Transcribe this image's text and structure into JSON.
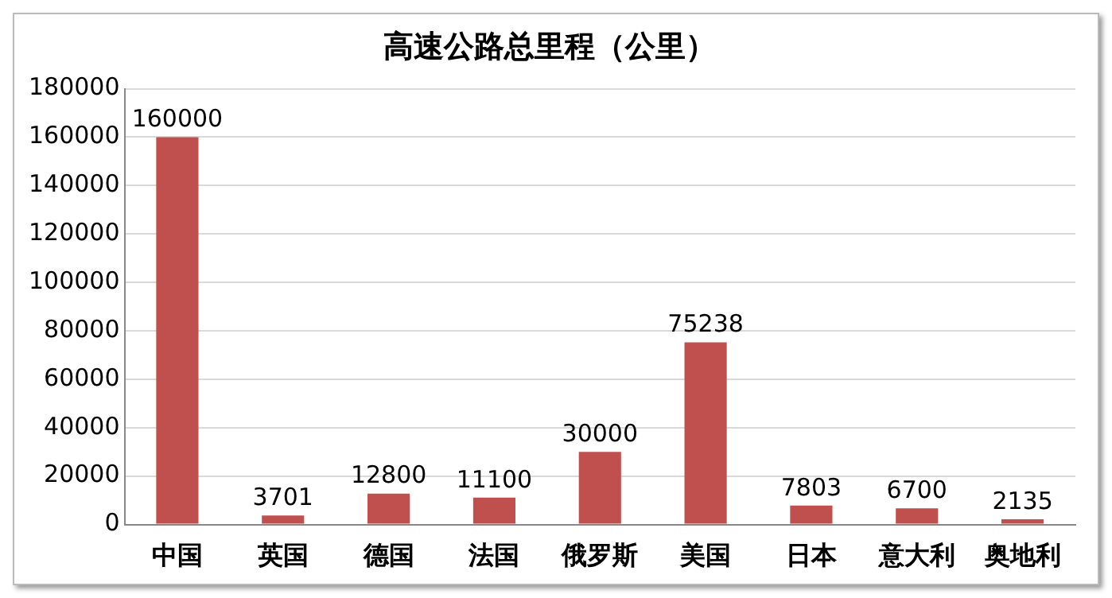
{
  "chart_data": {
    "type": "bar",
    "title": "高速公路总里程（公里）",
    "categories": [
      "中国",
      "英国",
      "德国",
      "法国",
      "俄罗斯",
      "美国",
      "日本",
      "意大利",
      "奥地利"
    ],
    "values": [
      160000,
      3701,
      12800,
      11100,
      30000,
      75238,
      7803,
      6700,
      2135
    ],
    "color": "#c0504d",
    "ylim": [
      0,
      180000
    ],
    "yticks": [
      0,
      20000,
      40000,
      60000,
      80000,
      100000,
      120000,
      140000,
      160000,
      180000
    ],
    "grid": "y",
    "data_labels": true,
    "legend": false
  }
}
